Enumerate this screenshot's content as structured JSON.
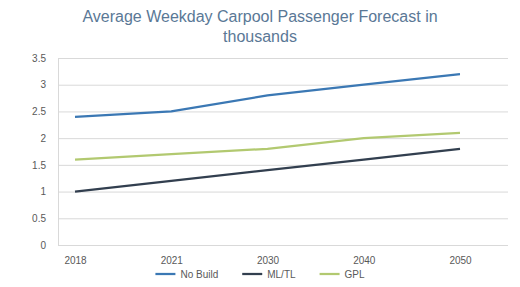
{
  "chart_data": {
    "type": "line",
    "title": "Average Weekday Carpool Passenger Forecast in thousands",
    "categories": [
      "2018",
      "2021",
      "2030",
      "2040",
      "2050"
    ],
    "series": [
      {
        "name": "No Build",
        "color": "#3b78b4",
        "values": [
          2.4,
          2.5,
          2.8,
          3.0,
          3.2
        ]
      },
      {
        "name": "ML/TL",
        "color": "#323f4f",
        "values": [
          1.0,
          1.2,
          1.4,
          1.6,
          1.8
        ]
      },
      {
        "name": "GPL",
        "color": "#b2c970",
        "values": [
          1.6,
          1.7,
          1.8,
          2.0,
          2.1
        ]
      }
    ],
    "ylim": [
      0,
      3.5
    ],
    "yticks": [
      0,
      0.5,
      1,
      1.5,
      2,
      2.5,
      3,
      3.5
    ],
    "grid": true,
    "legend": "bottom",
    "marker": "none"
  }
}
